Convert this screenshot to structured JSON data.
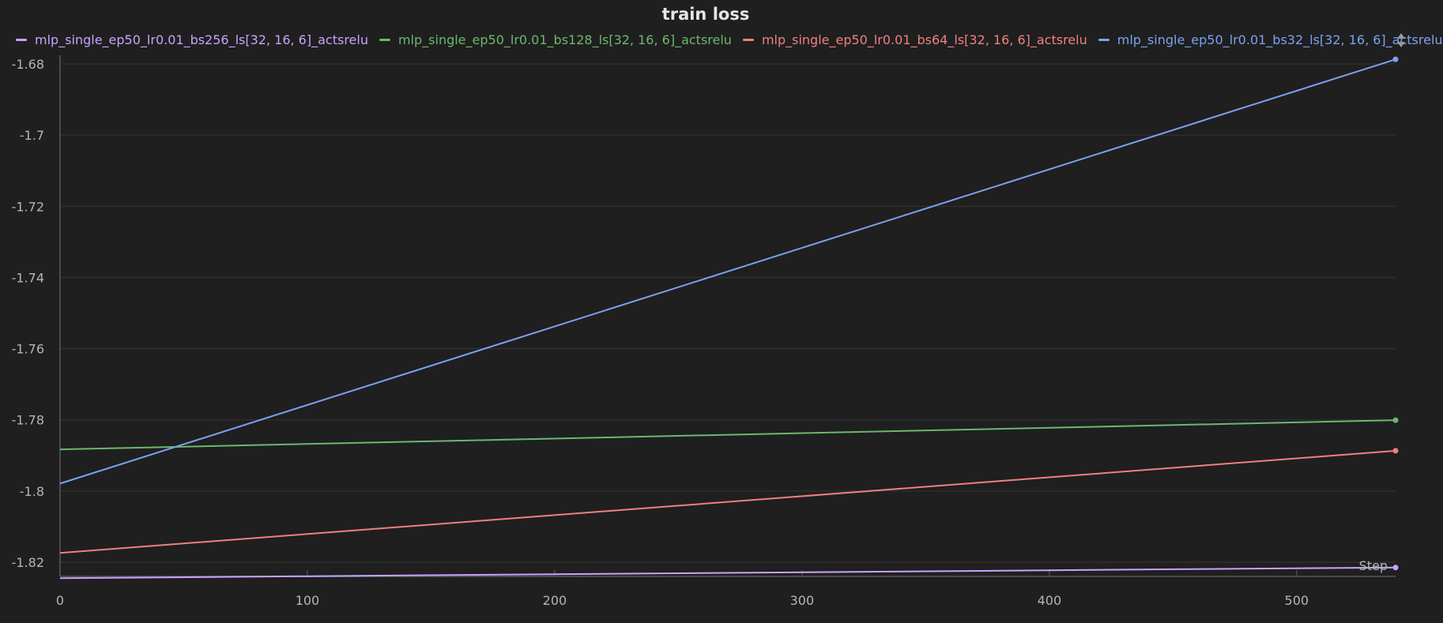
{
  "chart_data": {
    "type": "line",
    "title": "train loss",
    "xlabel": "Step",
    "ylabel": "",
    "xlim": [
      0,
      540
    ],
    "ylim": [
      -1.824,
      -1.678
    ],
    "x_ticks": [
      0,
      100,
      200,
      300,
      400,
      500
    ],
    "y_ticks": [
      -1.68,
      -1.7,
      -1.72,
      -1.74,
      -1.76,
      -1.78,
      -1.8,
      -1.82
    ],
    "grid": true,
    "legend_position": "top",
    "series": [
      {
        "name": "mlp_single_ep50_lr0.01_bs256_ls[32, 16, 6]_actsrelu",
        "color": "#c7a3ff",
        "x": [
          0,
          540
        ],
        "values": [
          -1.8245,
          -1.8215
        ]
      },
      {
        "name": "mlp_single_ep50_lr0.01_bs128_ls[32, 16, 6]_actsrelu",
        "color": "#6cb86c",
        "x": [
          0,
          540
        ],
        "values": [
          -1.7883,
          -1.7801
        ]
      },
      {
        "name": "mlp_single_ep50_lr0.01_bs64_ls[32, 16, 6]_actsrelu",
        "color": "#f08080",
        "x": [
          0,
          540
        ],
        "values": [
          -1.8174,
          -1.7887
        ]
      },
      {
        "name": "mlp_single_ep50_lr0.01_bs32_ls[32, 16, 6]_actsrelu",
        "color": "#7aa2f0",
        "x": [
          0,
          540
        ],
        "values": [
          -1.7979,
          -1.6787
        ]
      }
    ]
  }
}
